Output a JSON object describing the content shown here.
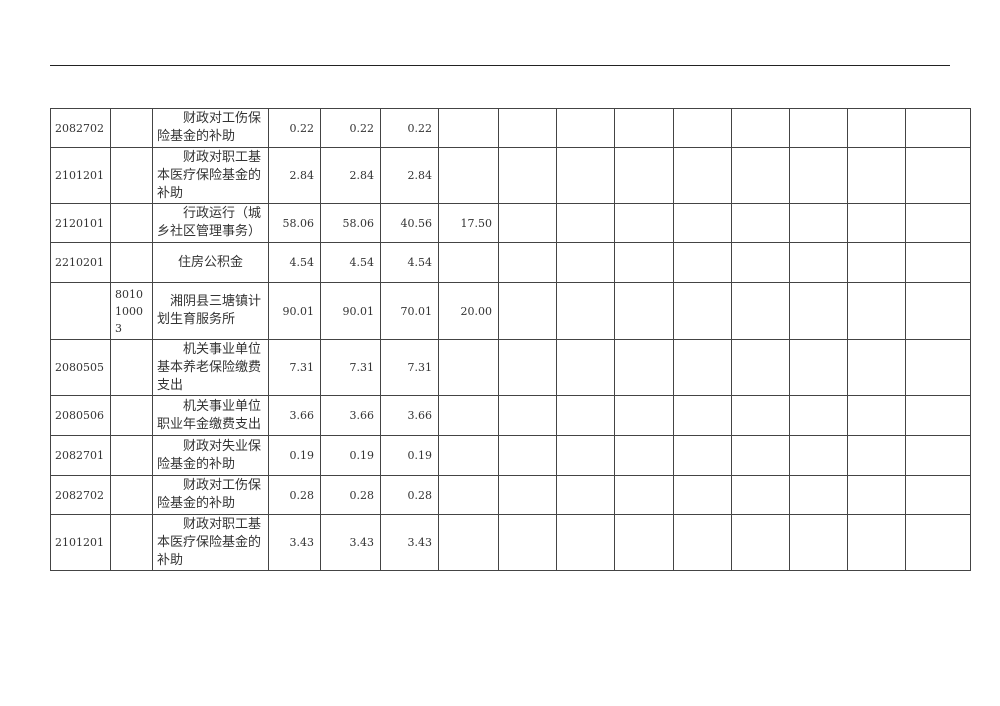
{
  "rows": [
    {
      "code": "2082702",
      "unit": "",
      "name": "财政对工伤保险基金的补助",
      "v1": "0.22",
      "v2": "0.22",
      "v3": "0.22",
      "v4": "",
      "h": 39
    },
    {
      "code": "2101201",
      "unit": "",
      "name": "财政对职工基本医疗保险基金的补助",
      "v1": "2.84",
      "v2": "2.84",
      "v3": "2.84",
      "v4": "",
      "h": 56
    },
    {
      "code": "2120101",
      "unit": "",
      "name": "行政运行（城乡社区管理事务）",
      "v1": "58.06",
      "v2": "58.06",
      "v3": "40.56",
      "v4": "17.50",
      "h": 39
    },
    {
      "code": "2210201",
      "unit": "",
      "name": "住房公积金",
      "v1": "4.54",
      "v2": "4.54",
      "v3": "4.54",
      "v4": "",
      "h": 40,
      "style": "center"
    },
    {
      "code": "",
      "unit": "801010003",
      "name": "湘阴县三塘镇计划生育服务所",
      "v1": "90.01",
      "v2": "90.01",
      "v3": "70.01",
      "v4": "20.00",
      "h": 57,
      "style": "ind1"
    },
    {
      "code": "2080505",
      "unit": "",
      "name": "机关事业单位基本养老保险缴费支出",
      "v1": "7.31",
      "v2": "7.31",
      "v3": "7.31",
      "v4": "",
      "h": 56
    },
    {
      "code": "2080506",
      "unit": "",
      "name": "机关事业单位职业年金缴费支出",
      "v1": "3.66",
      "v2": "3.66",
      "v3": "3.66",
      "v4": "",
      "h": 40
    },
    {
      "code": "2082701",
      "unit": "",
      "name": "财政对失业保险基金的补助",
      "v1": "0.19",
      "v2": "0.19",
      "v3": "0.19",
      "v4": "",
      "h": 40
    },
    {
      "code": "2082702",
      "unit": "",
      "name": "财政对工伤保险基金的补助",
      "v1": "0.28",
      "v2": "0.28",
      "v3": "0.28",
      "v4": "",
      "h": 39
    },
    {
      "code": "2101201",
      "unit": "",
      "name": "财政对职工基本医疗保险基金的补助",
      "v1": "3.43",
      "v2": "3.43",
      "v3": "3.43",
      "v4": "",
      "h": 56
    }
  ]
}
